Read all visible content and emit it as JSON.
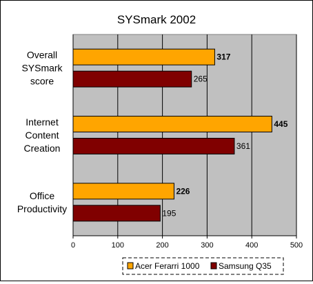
{
  "chart_data": {
    "type": "bar",
    "orientation": "horizontal",
    "title": "SYSmark 2002",
    "categories": [
      [
        "Overall",
        "SYSmark",
        "score"
      ],
      [
        "Internet",
        "Content",
        "Creation"
      ],
      [
        "Office",
        "Productivity"
      ]
    ],
    "series": [
      {
        "name": "Acer Ferarri 1000",
        "color": "#FFA500",
        "values": [
          317,
          445,
          226
        ]
      },
      {
        "name": "Samsung Q35",
        "color": "#800000",
        "values": [
          265,
          361,
          195
        ]
      }
    ],
    "xlim": [
      0,
      500
    ],
    "xticks": [
      0,
      100,
      200,
      300,
      400,
      500
    ],
    "grid": true,
    "plot_background": "#C0C0C0",
    "legend_position": "bottom"
  }
}
